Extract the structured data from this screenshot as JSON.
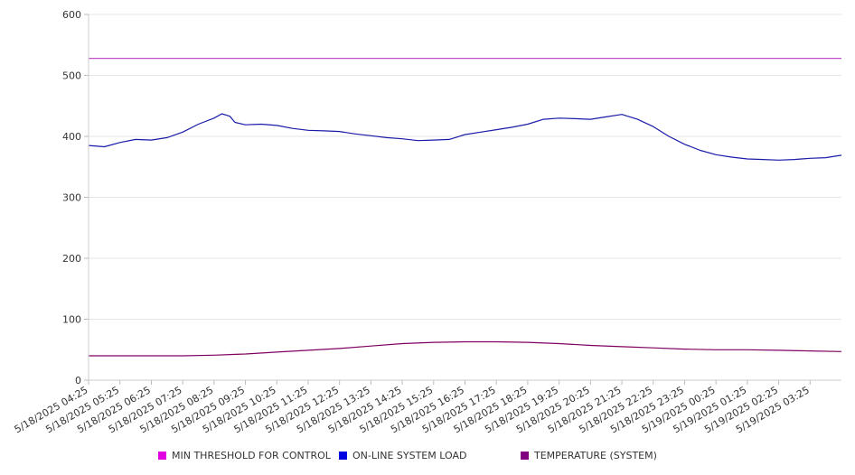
{
  "chart_data": {
    "type": "line",
    "title": "",
    "xlabel": "",
    "ylabel": "",
    "ylim": [
      0,
      600
    ],
    "y_ticks": [
      0,
      100,
      200,
      300,
      400,
      500,
      600
    ],
    "x_tick_labels": [
      "5/18/2025 04:25",
      "5/18/2025 05:25",
      "5/18/2025 06:25",
      "5/18/2025 07:25",
      "5/18/2025 08:25",
      "5/18/2025 09:25",
      "5/18/2025 10:25",
      "5/18/2025 11:25",
      "5/18/2025 12:25",
      "5/18/2025 13:25",
      "5/18/2025 14:25",
      "5/18/2025 15:25",
      "5/18/2025 16:25",
      "5/18/2025 17:25",
      "5/18/2025 18:25",
      "5/18/2025 19:25",
      "5/18/2025 20:25",
      "5/18/2025 21:25",
      "5/18/2025 22:25",
      "5/18/2025 23:25",
      "5/19/2025 00:25",
      "5/19/2025 01:25",
      "5/19/2025 02:25",
      "5/19/2025 03:25"
    ],
    "x_range": [
      "5/18/2025 04:25",
      "5/19/2025 04:25"
    ],
    "grid": "horizontal",
    "legend_position": "bottom",
    "series": [
      {
        "name": "MIN THRESHOLD FOR CONTROL",
        "color": "#e000e0",
        "line_color": "#c050c8",
        "points": [
          [
            "5/18/2025 04:25",
            528
          ],
          [
            "5/19/2025 04:25",
            528
          ]
        ]
      },
      {
        "name": "ON-LINE SYSTEM LOAD",
        "color": "#0000e0",
        "line_color": "#1a1aa8",
        "points": [
          [
            "5/18/2025 04:25",
            385
          ],
          [
            "5/18/2025 04:55",
            383
          ],
          [
            "5/18/2025 05:25",
            390
          ],
          [
            "5/18/2025 05:55",
            395
          ],
          [
            "5/18/2025 06:25",
            394
          ],
          [
            "5/18/2025 06:55",
            398
          ],
          [
            "5/18/2025 07:25",
            407
          ],
          [
            "5/18/2025 07:55",
            420
          ],
          [
            "5/18/2025 08:25",
            430
          ],
          [
            "5/18/2025 08:40",
            437
          ],
          [
            "5/18/2025 08:55",
            433
          ],
          [
            "5/18/2025 09:05",
            423
          ],
          [
            "5/18/2025 09:25",
            419
          ],
          [
            "5/18/2025 09:55",
            420
          ],
          [
            "5/18/2025 10:25",
            418
          ],
          [
            "5/18/2025 10:55",
            413
          ],
          [
            "5/18/2025 11:25",
            410
          ],
          [
            "5/18/2025 11:55",
            409
          ],
          [
            "5/18/2025 12:25",
            408
          ],
          [
            "5/18/2025 12:55",
            404
          ],
          [
            "5/18/2025 13:25",
            401
          ],
          [
            "5/18/2025 13:55",
            398
          ],
          [
            "5/18/2025 14:25",
            396
          ],
          [
            "5/18/2025 14:55",
            393
          ],
          [
            "5/18/2025 15:25",
            394
          ],
          [
            "5/18/2025 15:55",
            395
          ],
          [
            "5/18/2025 16:25",
            403
          ],
          [
            "5/18/2025 16:55",
            407
          ],
          [
            "5/18/2025 17:25",
            411
          ],
          [
            "5/18/2025 17:55",
            415
          ],
          [
            "5/18/2025 18:25",
            420
          ],
          [
            "5/18/2025 18:55",
            428
          ],
          [
            "5/18/2025 19:25",
            430
          ],
          [
            "5/18/2025 19:55",
            429
          ],
          [
            "5/18/2025 20:25",
            428
          ],
          [
            "5/18/2025 20:55",
            432
          ],
          [
            "5/18/2025 21:25",
            436
          ],
          [
            "5/18/2025 21:55",
            428
          ],
          [
            "5/18/2025 22:25",
            416
          ],
          [
            "5/18/2025 22:55",
            400
          ],
          [
            "5/18/2025 23:25",
            387
          ],
          [
            "5/18/2025 23:55",
            377
          ],
          [
            "5/19/2025 00:25",
            370
          ],
          [
            "5/19/2025 00:55",
            366
          ],
          [
            "5/19/2025 01:25",
            363
          ],
          [
            "5/19/2025 01:55",
            362
          ],
          [
            "5/19/2025 02:25",
            361
          ],
          [
            "5/19/2025 02:55",
            362
          ],
          [
            "5/19/2025 03:25",
            364
          ],
          [
            "5/19/2025 03:55",
            365
          ],
          [
            "5/19/2025 04:25",
            369
          ]
        ]
      },
      {
        "name": "TEMPERATURE (SYSTEM)",
        "color": "#800080",
        "line_color": "#800060",
        "points": [
          [
            "5/18/2025 04:25",
            40
          ],
          [
            "5/18/2025 05:25",
            40
          ],
          [
            "5/18/2025 06:25",
            40
          ],
          [
            "5/18/2025 07:25",
            40
          ],
          [
            "5/18/2025 08:25",
            41
          ],
          [
            "5/18/2025 09:25",
            43
          ],
          [
            "5/18/2025 10:25",
            46
          ],
          [
            "5/18/2025 11:25",
            49
          ],
          [
            "5/18/2025 12:25",
            52
          ],
          [
            "5/18/2025 13:25",
            56
          ],
          [
            "5/18/2025 14:25",
            60
          ],
          [
            "5/18/2025 15:25",
            62
          ],
          [
            "5/18/2025 16:25",
            63
          ],
          [
            "5/18/2025 17:25",
            63
          ],
          [
            "5/18/2025 18:25",
            62
          ],
          [
            "5/18/2025 19:25",
            60
          ],
          [
            "5/18/2025 20:25",
            57
          ],
          [
            "5/18/2025 21:25",
            55
          ],
          [
            "5/18/2025 22:25",
            53
          ],
          [
            "5/18/2025 23:25",
            51
          ],
          [
            "5/19/2025 00:25",
            50
          ],
          [
            "5/19/2025 01:25",
            50
          ],
          [
            "5/19/2025 02:25",
            49
          ],
          [
            "5/19/2025 03:25",
            48
          ],
          [
            "5/19/2025 04:25",
            47
          ]
        ]
      }
    ]
  }
}
